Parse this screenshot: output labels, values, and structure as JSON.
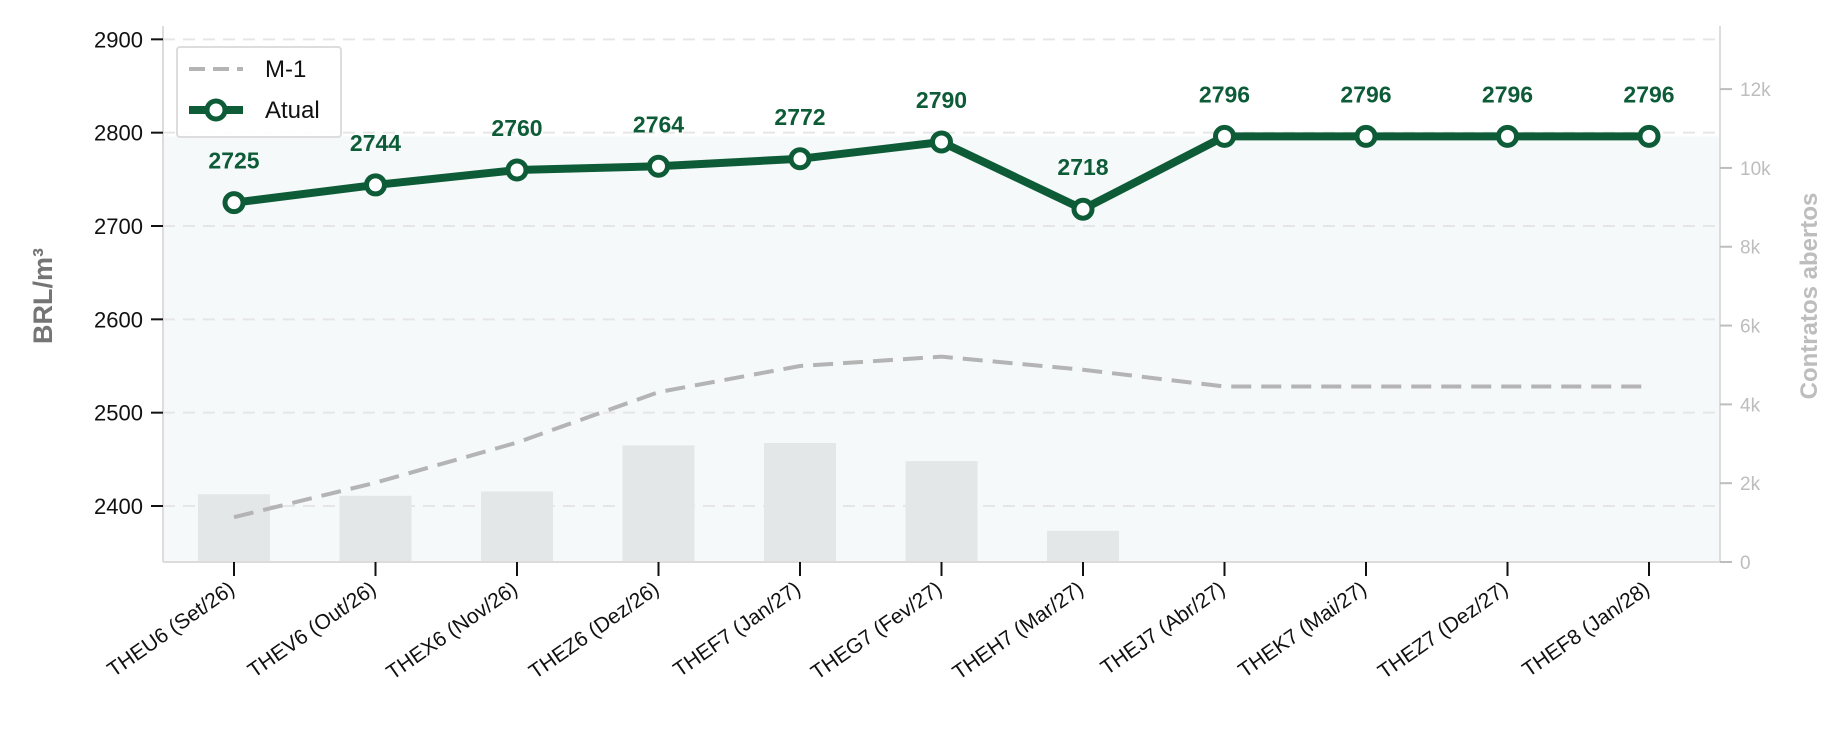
{
  "chart_data": {
    "type": "line",
    "title": "",
    "xlabel": "",
    "ylabel": "BRL/m³",
    "y2label": "Contratos abertos",
    "ylim": [
      2340,
      2910
    ],
    "y2lim": [
      0,
      13500
    ],
    "yticks": [
      2400,
      2500,
      2600,
      2700,
      2800,
      2900
    ],
    "y2ticks": [
      0,
      2000,
      4000,
      6000,
      8000,
      10000,
      12000
    ],
    "y2ticklabels": [
      "0",
      "2k",
      "4k",
      "6k",
      "8k",
      "10k",
      "12k"
    ],
    "grid": true,
    "legend_position": "top-left",
    "categories": [
      "THEU6 (Set/26)",
      "THEV6 (Out/26)",
      "THEX6 (Nov/26)",
      "THEZ6 (Dez/26)",
      "THEF7 (Jan/27)",
      "THEG7 (Fev/27)",
      "THEH7 (Mar/27)",
      "THEJ7 (Abr/27)",
      "THEK7 (Mai/27)",
      "THEZ7 (Dez/27)",
      "THEF8 (Jan/28)"
    ],
    "series": [
      {
        "name": "Atual",
        "type": "line",
        "color": "#0d5c37",
        "values": [
          2725,
          2744,
          2760,
          2764,
          2772,
          2790,
          2718,
          2796,
          2796,
          2796,
          2796
        ],
        "data_labels": [
          "2725",
          "2744",
          "2760",
          "2764",
          "2772",
          "2790",
          "2718",
          "2796",
          "2796",
          "2796",
          "2796"
        ]
      },
      {
        "name": "M-1",
        "type": "line",
        "style": "dashed",
        "color": "#b4b4b4",
        "values": [
          2388,
          2425,
          2468,
          2522,
          2550,
          2560,
          2546,
          2528,
          2528,
          2528,
          2528
        ]
      },
      {
        "name": "Contratos abertos",
        "type": "bar",
        "axis": "right",
        "color": "#e4e7e7",
        "values": [
          1720,
          1680,
          1790,
          2960,
          3020,
          2560,
          790,
          0,
          0,
          0,
          0
        ]
      }
    ]
  },
  "colors": {
    "current": "#0d5c37",
    "previous": "#b4b4b4",
    "bars": "#e4e7e7",
    "shade": "#f5f9fa",
    "right_axis": "#bdbdbd"
  }
}
